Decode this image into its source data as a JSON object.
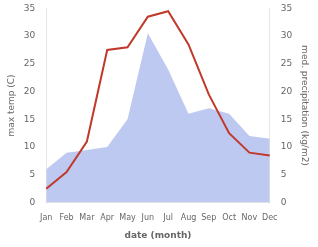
{
  "chart_data": {
    "type": "line",
    "xlabel": "date (month)",
    "ylabel": "max temp (C)",
    "y2label": "med. precipitation (kg/m2)",
    "categories": [
      "Jan",
      "Feb",
      "Mar",
      "Apr",
      "May",
      "Jun",
      "Jul",
      "Aug",
      "Sep",
      "Oct",
      "Nov",
      "Dec"
    ],
    "series": [
      {
        "type": "area",
        "axis": "y2",
        "color": "#bdc9f0",
        "values": [
          6.0,
          9.0,
          9.5,
          10.0,
          15.0,
          30.5,
          24.0,
          16.0,
          17.0,
          16.0,
          12.0,
          11.5
        ]
      },
      {
        "type": "line",
        "color": "#c0392b",
        "values": [
          2.5,
          5.5,
          11.0,
          27.5,
          28.0,
          33.5,
          34.5,
          28.5,
          19.5,
          12.5,
          9.0,
          8.5
        ]
      }
    ],
    "ylim": [
      0,
      35
    ],
    "yticks": [
      0,
      5,
      10,
      15,
      20,
      25,
      30,
      35
    ],
    "y2lim": [
      0,
      35
    ],
    "y2ticks": [
      0,
      5,
      10,
      15,
      20,
      25,
      30,
      35
    ],
    "grid": false
  }
}
